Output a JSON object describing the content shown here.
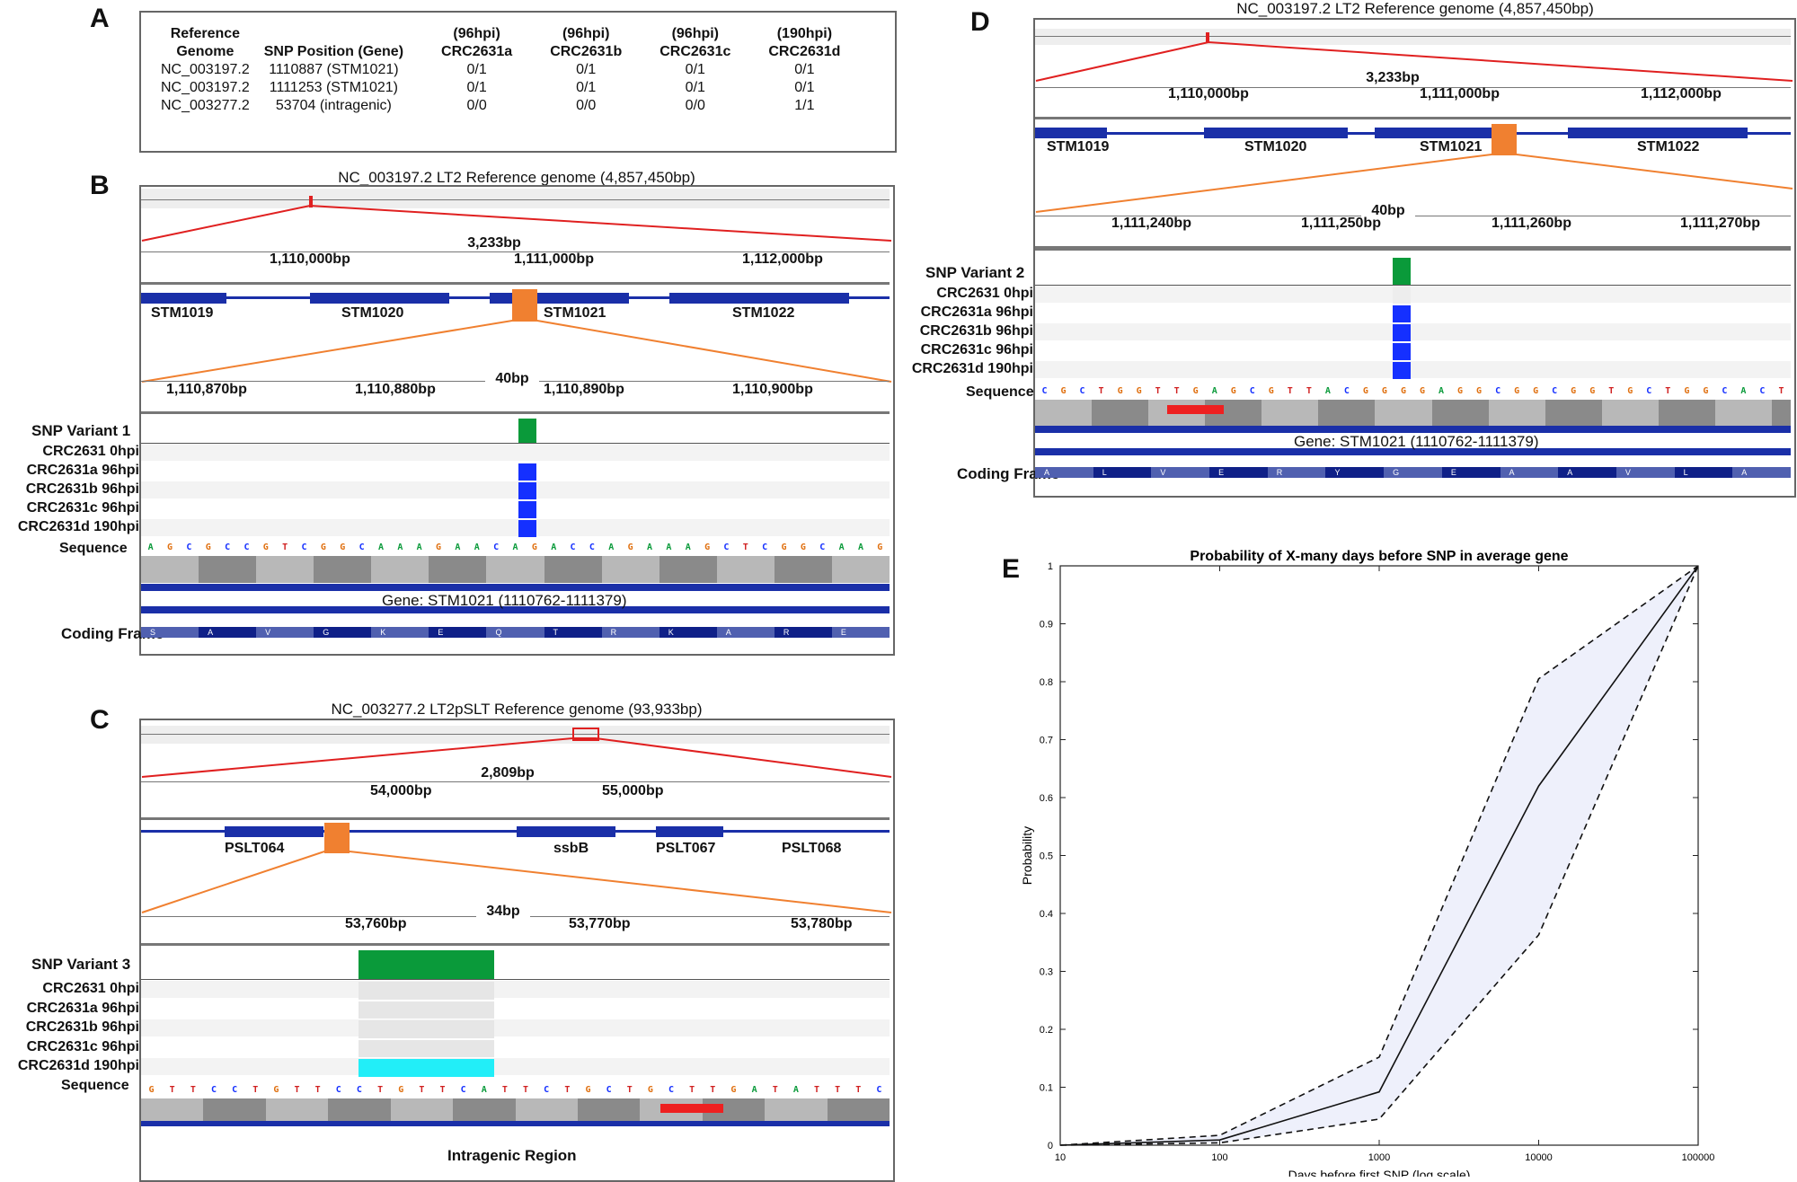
{
  "panels": {
    "A": "A",
    "B": "B",
    "C": "C",
    "D": "D",
    "E": "E"
  },
  "table": {
    "headers": [
      [
        "Reference",
        "Genome"
      ],
      [
        "",
        "SNP Position (Gene)"
      ],
      [
        "(96hpi)",
        "CRC2631a"
      ],
      [
        "(96hpi)",
        "CRC2631b"
      ],
      [
        "(96hpi)",
        "CRC2631c"
      ],
      [
        "(190hpi)",
        "CRC2631d"
      ]
    ],
    "rows": [
      [
        "NC_003197.2",
        "1110887 (STM1021)",
        "0/1",
        "0/1",
        "0/1",
        "0/1"
      ],
      [
        "NC_003197.2",
        "1111253 (STM1021)",
        "0/1",
        "0/1",
        "0/1",
        "0/1"
      ],
      [
        "NC_003277.2",
        "53704 (intragenic)",
        "0/0",
        "0/0",
        "0/0",
        "1/1"
      ]
    ]
  },
  "B": {
    "title": "NC_003197.2 LT2 Reference genome (4,857,450bp)",
    "span1": "3,233bp",
    "ticks1": [
      "1,110,000bp",
      "1,111,000bp",
      "1,112,000bp"
    ],
    "genes": [
      "STM1019",
      "STM1020",
      "STM1021",
      "STM1022"
    ],
    "span2": "40bp",
    "ticks2": [
      "1,110,870bp",
      "1,110,880bp",
      "1,110,890bp",
      "1,110,900bp"
    ],
    "variant": "SNP Variant 1",
    "samples": [
      "CRC2631 0hpi",
      "CRC2631a 96hpi",
      "CRC2631b 96hpi",
      "CRC2631c 96hpi",
      "CRC2631d 190hpi"
    ],
    "sequence_label": "Sequence",
    "sequence": "AGCGCCGTCGGCAAAGAACAGACCAGAAAGCTCGGCAAG",
    "gene_label": "Gene: STM1021 (1110762-1111379)",
    "frame_label": "Coding Frame",
    "frame": [
      "S",
      "A",
      "V",
      "G",
      "K",
      "E",
      "Q",
      "T",
      "R",
      "K",
      "A",
      "R",
      "E"
    ]
  },
  "C": {
    "title": "NC_003277.2 LT2pSLT Reference genome (93,933bp)",
    "span1": "2,809bp",
    "ticks1": [
      "54,000bp",
      "55,000bp"
    ],
    "genes": [
      "PSLT064",
      "ssbB",
      "PSLT067",
      "PSLT068"
    ],
    "span2": "34bp",
    "ticks2": [
      "53,760bp",
      "53,770bp",
      "53,780bp"
    ],
    "variant": "SNP Variant 3",
    "samples": [
      "CRC2631 0hpi",
      "CRC2631a 96hpi",
      "CRC2631b 96hpi",
      "CRC2631c 96hpi",
      "CRC2631d 190hpi"
    ],
    "sequence_label": "Sequence",
    "sequence": "GTTCCTGTTCCTGTTCATTCTGCTGCTTGATATTTC",
    "region_label": "Intragenic Region"
  },
  "D": {
    "title": "NC_003197.2 LT2 Reference genome (4,857,450bp)",
    "span1": "3,233bp",
    "ticks1": [
      "1,110,000bp",
      "1,111,000bp",
      "1,112,000bp"
    ],
    "genes": [
      "STM1019",
      "STM1020",
      "STM1021",
      "STM1022"
    ],
    "span2": "40bp",
    "ticks2": [
      "1,111,240bp",
      "1,111,250bp",
      "1,111,260bp",
      "1,111,270bp"
    ],
    "variant": "SNP Variant 2",
    "samples": [
      "CRC2631 0hpi",
      "CRC2631a 96hpi",
      "CRC2631b 96hpi",
      "CRC2631c 96hpi",
      "CRC2631d 190hpi"
    ],
    "sequence_label": "Sequence",
    "sequence": "CGCTGGTTGAGCGTTACGGGGAGGCGGCGGTGCTGGCACT",
    "gene_label": "Gene: STM1021 (1110762-1111379)",
    "frame_label": "Coding Frame",
    "frame": [
      "A",
      "L",
      "V",
      "E",
      "R",
      "Y",
      "G",
      "E",
      "A",
      "A",
      "V",
      "L",
      "A"
    ]
  },
  "chart_data": {
    "type": "line",
    "title": "Probability of X-many days before SNP in average gene",
    "xlabel": "Days before first SNP (log scale)",
    "ylabel": "Probability",
    "xscale": "log",
    "xlim": [
      10,
      100000
    ],
    "ylim": [
      0,
      1
    ],
    "xticks": [
      "10",
      "100",
      "1000",
      "10000",
      "100000"
    ],
    "yticks": [
      "0",
      "0.1",
      "0.2",
      "0.3",
      "0.4",
      "0.5",
      "0.6",
      "0.7",
      "0.8",
      "0.9",
      "1"
    ],
    "x": [
      10,
      100,
      1000,
      10000,
      100000
    ],
    "series": [
      {
        "values": [
          0,
          0.009,
          0.092,
          0.62,
          1.0
        ],
        "style": "solid"
      },
      {
        "values": [
          0,
          0.017,
          0.152,
          0.805,
          1.0
        ],
        "style": "dashed"
      },
      {
        "values": [
          0,
          0.004,
          0.045,
          0.363,
          1.0
        ],
        "style": "dashed"
      }
    ],
    "band_color": "#eef0fb",
    "grid": false
  }
}
